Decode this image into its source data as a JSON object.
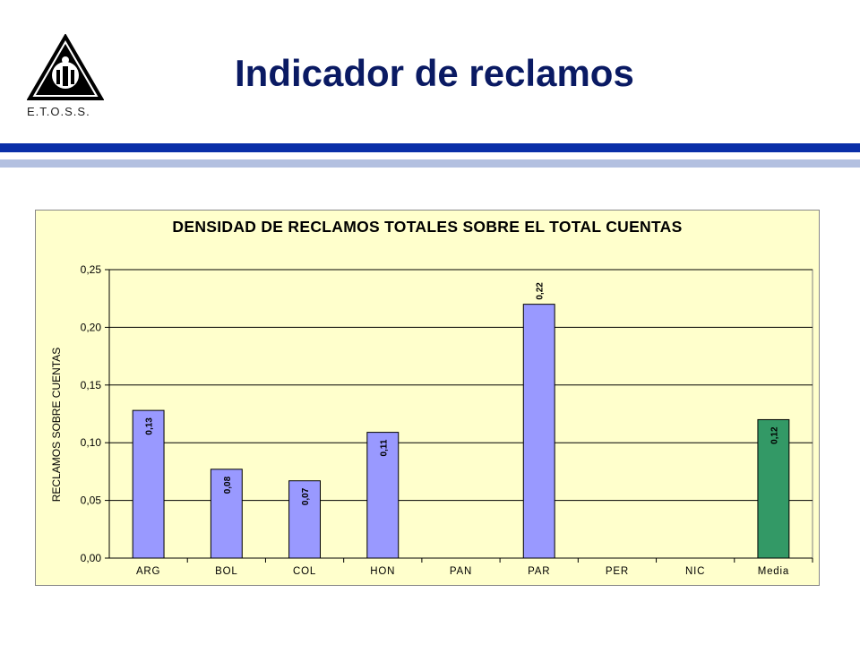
{
  "header": {
    "title": "Indicador de reclamos",
    "logo_caption": "E.T.O.S.S."
  },
  "colors": {
    "title": "#0a1a63",
    "rule_primary": "#0a2fa8",
    "rule_secondary": "#b3c0e0",
    "chart_background": "#ffffcc",
    "bar_default": "#9999ff",
    "bar_highlight": "#339966"
  },
  "chart_data": {
    "type": "bar",
    "title": "DENSIDAD DE RECLAMOS TOTALES SOBRE EL TOTAL CUENTAS",
    "xlabel": "",
    "ylabel": "RECLAMOS SOBRE CUENTAS",
    "ylim": [
      0,
      0.25
    ],
    "yticks": [
      "0,00",
      "0,05",
      "0,10",
      "0,15",
      "0,20",
      "0,25"
    ],
    "ytick_values": [
      0,
      0.05,
      0.1,
      0.15,
      0.2,
      0.25
    ],
    "grid": true,
    "categories": [
      "ARG",
      "BOL",
      "COL",
      "HON",
      "PAN",
      "PAR",
      "PER",
      "NIC",
      "Media"
    ],
    "values": [
      0.128,
      0.077,
      0.067,
      0.109,
      null,
      0.22,
      null,
      null,
      0.12
    ],
    "data_labels": [
      "0,13",
      "0,08",
      "0,07",
      "0,11",
      "",
      "0,22",
      "",
      "",
      "0,12"
    ],
    "highlight_category": "Media"
  }
}
